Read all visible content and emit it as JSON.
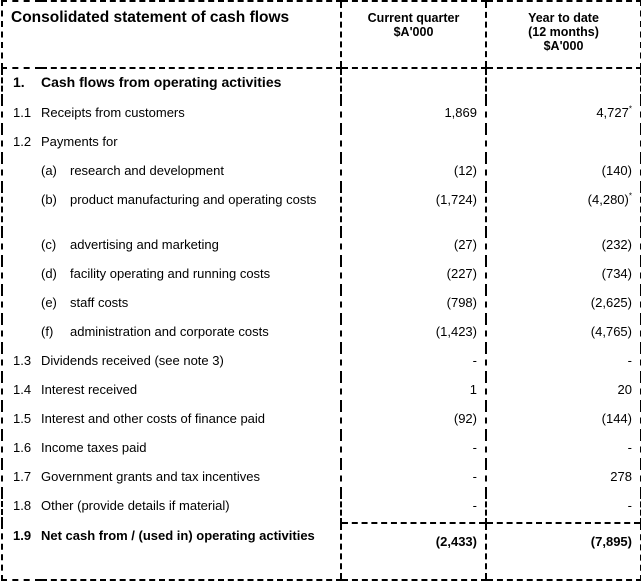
{
  "header": {
    "title": "Consolidated statement of cash flows",
    "col_current_line1": "Current quarter",
    "col_current_line2": "$A'000",
    "col_ytd_line1": "Year to date",
    "col_ytd_line2": "(12 months)",
    "col_ytd_line3": "$A'000"
  },
  "section": {
    "num": "1.",
    "label": "Cash flows from operating activities"
  },
  "rows": {
    "r1_1": {
      "num": "1.1",
      "label": "Receipts from customers",
      "current": "1,869",
      "ytd": "4,727",
      "ytd_mark": "*"
    },
    "r1_2": {
      "num": "1.2",
      "label": "Payments for"
    },
    "r_a": {
      "letter": "(a)",
      "label": "research and development",
      "current": "(12)",
      "ytd": "(140)"
    },
    "r_b": {
      "letter": "(b)",
      "label": "product manufacturing and operating costs",
      "current": "(1,724)",
      "ytd": "(4,280)",
      "ytd_mark": "*"
    },
    "r_c": {
      "letter": "(c)",
      "label": "advertising and marketing",
      "current": "(27)",
      "ytd": "(232)"
    },
    "r_d": {
      "letter": "(d)",
      "label": "facility operating and running costs",
      "current": "(227)",
      "ytd": "(734)"
    },
    "r_e": {
      "letter": "(e)",
      "label": "staff costs",
      "current": "(798)",
      "ytd": "(2,625)"
    },
    "r_f": {
      "letter": "(f)",
      "label": "administration and corporate costs",
      "current": "(1,423)",
      "ytd": "(4,765)"
    },
    "r1_3": {
      "num": "1.3",
      "label": "Dividends received (see note 3)",
      "current": "-",
      "ytd": "-"
    },
    "r1_4": {
      "num": "1.4",
      "label": "Interest received",
      "current": "1",
      "ytd": "20"
    },
    "r1_5": {
      "num": "1.5",
      "label": "Interest and other costs of finance paid",
      "current": "(92)",
      "ytd": "(144)"
    },
    "r1_6": {
      "num": "1.6",
      "label": "Income taxes paid",
      "current": "-",
      "ytd": "-"
    },
    "r1_7": {
      "num": "1.7",
      "label": "Government grants and tax incentives",
      "current": "-",
      "ytd": "278"
    },
    "r1_8": {
      "num": "1.8",
      "label": "Other (provide details if material)",
      "current": "-",
      "ytd": "-"
    },
    "r1_9": {
      "num": "1.9",
      "label": "Net cash from / (used in) operating activities",
      "current": "(2,433)",
      "ytd": "(7,895)"
    }
  }
}
